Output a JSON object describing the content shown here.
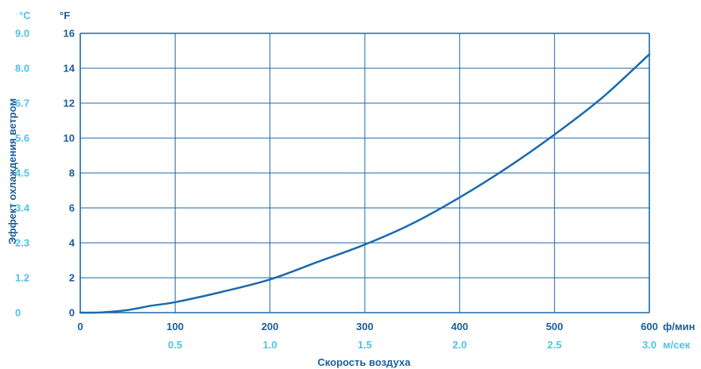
{
  "chart_data": {
    "type": "line",
    "xlabel": "Скорость воздуха",
    "ylabel": "Эффект охлаждения ветром",
    "x_unit_primary": "ф/мин",
    "x_unit_secondary": "м/сек",
    "y_unit_primary": "°F",
    "y_unit_secondary": "°C",
    "xlim": [
      0,
      600
    ],
    "ylim": [
      0,
      16
    ],
    "x_ticks": [
      "0",
      "100",
      "200",
      "300",
      "400",
      "500",
      "600"
    ],
    "x_ticks_secondary": [
      "0.5",
      "1.0",
      "1.5",
      "2.0",
      "2.5",
      "3.0"
    ],
    "y_ticks": [
      "0",
      "2",
      "4",
      "6",
      "8",
      "10",
      "12",
      "14",
      "16"
    ],
    "y_ticks_secondary": [
      "0",
      "1.2",
      "2.3",
      "3.4",
      "4.5",
      "5.6",
      "6.7",
      "8.0",
      "9.0"
    ],
    "grid": true,
    "series": [
      {
        "x": [
          0,
          25,
          50,
          75,
          100,
          150,
          200,
          250,
          300,
          350,
          400,
          450,
          500,
          550,
          600
        ],
        "values": [
          0,
          0.02,
          0.15,
          0.4,
          0.6,
          1.2,
          1.9,
          2.9,
          3.9,
          5.1,
          6.6,
          8.3,
          10.2,
          12.3,
          14.8
        ]
      }
    ],
    "colors": {
      "line": "#1b6aac",
      "grid": "#1b6aac",
      "label_dark": "#1b5e9b",
      "label_light": "#4fc3e8"
    }
  }
}
